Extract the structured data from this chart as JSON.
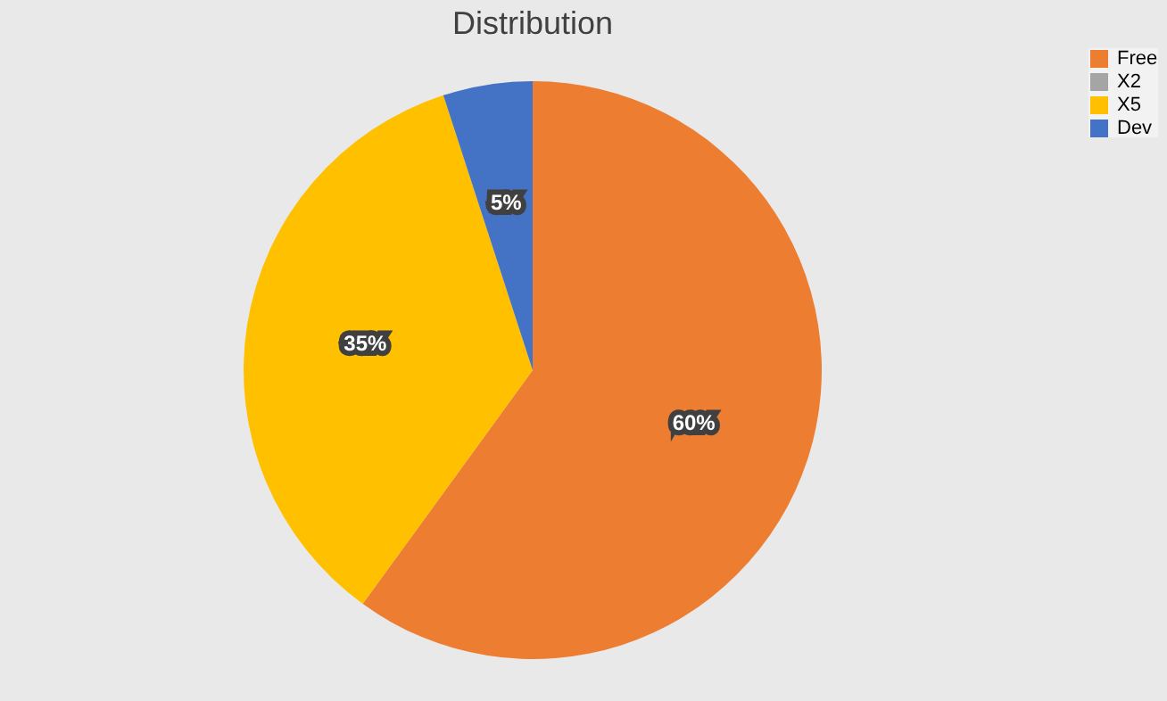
{
  "chart_data": {
    "type": "pie",
    "title": "Distribution",
    "categories": [
      "Free",
      "X2",
      "X5",
      "Dev"
    ],
    "values": [
      60,
      0,
      35,
      5
    ],
    "colors": [
      "#ed7d31",
      "#a5a5a5",
      "#ffc000",
      "#4472c4"
    ],
    "value_labels": [
      "60%",
      null,
      "35%",
      "5%"
    ],
    "legend": "right"
  }
}
